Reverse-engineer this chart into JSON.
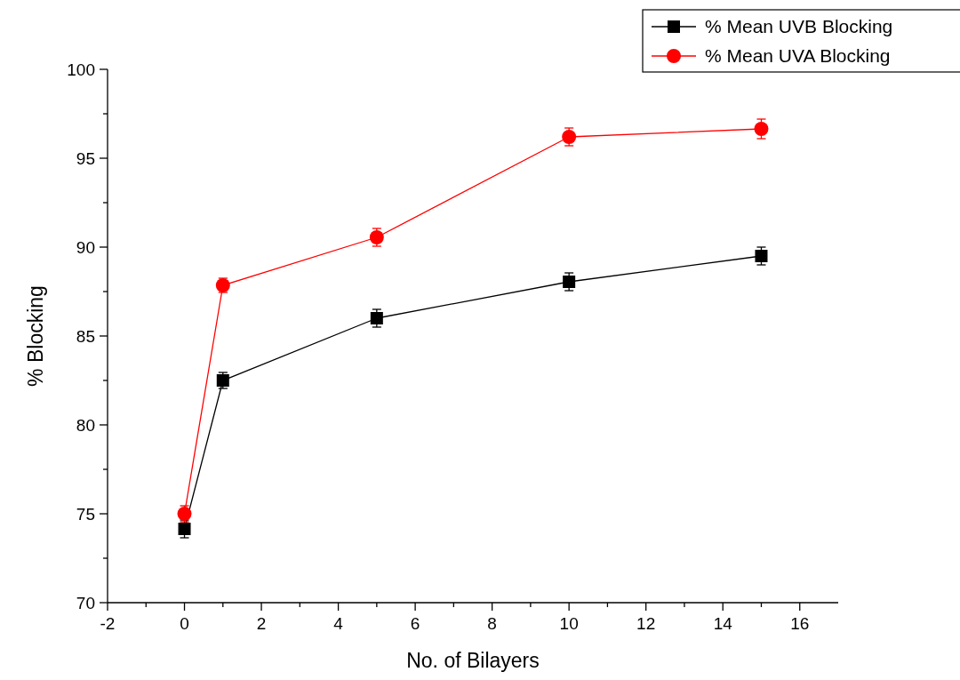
{
  "chart_data": {
    "type": "line",
    "xlabel": "No. of Bilayers",
    "ylabel": "% Blocking",
    "x": [
      0,
      1,
      5,
      10,
      15
    ],
    "xlim": [
      -2,
      17
    ],
    "xticks": [
      -2,
      {
        "value": -1,
        "label": null
      },
      0,
      {
        "value": 1,
        "label": null
      },
      2,
      {
        "value": 3,
        "label": null
      },
      4,
      {
        "value": 5,
        "label": null
      },
      6,
      {
        "value": 7,
        "label": null
      },
      8,
      {
        "value": 9,
        "label": null
      },
      10,
      {
        "value": 11,
        "label": null
      },
      12,
      {
        "value": 13,
        "label": null
      },
      14,
      {
        "value": 15,
        "label": null
      },
      16
    ],
    "ylim": [
      70,
      100
    ],
    "yticks": [
      70,
      {
        "value": 72.5,
        "label": null
      },
      75,
      {
        "value": 77.5,
        "label": null
      },
      80,
      {
        "value": 82.5,
        "label": null
      },
      85,
      {
        "value": 87.5,
        "label": null
      },
      90,
      {
        "value": 92.5,
        "label": null
      },
      95,
      {
        "value": 97.5,
        "label": null
      },
      100
    ],
    "legend": "top right",
    "grid": false,
    "series": [
      {
        "name": "% Mean UVB Blocking",
        "color": "#000000",
        "marker": "square",
        "values": [
          74.15,
          82.5,
          86.0,
          88.05,
          89.5
        ],
        "errors": [
          0.5,
          0.45,
          0.5,
          0.5,
          0.5
        ]
      },
      {
        "name": "% Mean UVA Blocking",
        "color": "#ff0000",
        "marker": "circle",
        "values": [
          75.0,
          87.85,
          90.55,
          96.2,
          96.65
        ],
        "errors": [
          0.45,
          0.4,
          0.5,
          0.5,
          0.55
        ]
      }
    ]
  }
}
